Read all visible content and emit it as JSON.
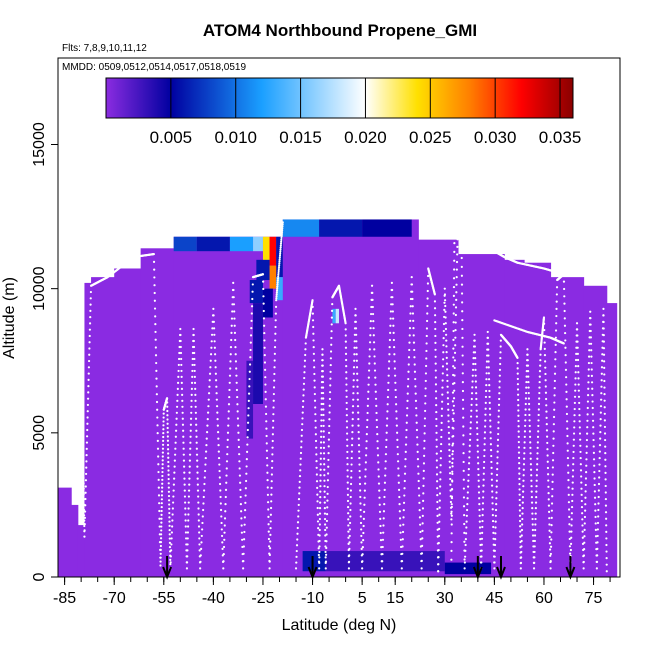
{
  "chart_data": {
    "type": "heatmap",
    "title": "ATOM4 Northbound Propene_GMI",
    "annotations": [
      "Flts: 7,8,9,10,11,12",
      "MMDD: 0509,0512,0514,0517,0518,0519"
    ],
    "xlabel": "Latitude (deg N)",
    "ylabel": "Altitude (m)",
    "xlim": [
      -87,
      83
    ],
    "ylim": [
      0,
      18000
    ],
    "x_ticks": [
      -85,
      -70,
      -55,
      -40,
      -25,
      -10,
      5,
      15,
      30,
      45,
      60,
      75
    ],
    "y_ticks": [
      0,
      5000,
      10000,
      15000
    ],
    "colorbar": {
      "range": [
        0,
        0.036
      ],
      "ticks": [
        0.005,
        0.01,
        0.015,
        0.02,
        0.025,
        0.03,
        0.035
      ],
      "tick_labels": [
        "0.005",
        "0.010",
        "0.015",
        "0.020",
        "0.025",
        "0.030",
        "0.035"
      ],
      "stops": [
        "#8b2ce0",
        "#0000a0",
        "#1a9fff",
        "#ffffff",
        "#ffe000",
        "#ff8000",
        "#ff0000",
        "#8a0000"
      ],
      "stop_values": [
        0,
        0.005,
        0.012,
        0.02,
        0.024,
        0.028,
        0.032,
        0.036
      ]
    },
    "background_color": "#8a2be2",
    "coverage_columns": [
      {
        "lat_from": -87,
        "lat_to": -83,
        "top": 3100
      },
      {
        "lat_from": -83,
        "lat_to": -81,
        "top": 2500
      },
      {
        "lat_from": -81,
        "lat_to": -79,
        "top": 1800
      },
      {
        "lat_from": -79,
        "lat_to": -77,
        "top": 10200
      },
      {
        "lat_from": -77,
        "lat_to": -70,
        "top": 10400
      },
      {
        "lat_from": -70,
        "lat_to": -62,
        "top": 10700
      },
      {
        "lat_from": -62,
        "lat_to": -52,
        "top": 11400
      },
      {
        "lat_from": -52,
        "lat_to": -19,
        "top": 11800
      },
      {
        "lat_from": -19,
        "lat_to": 22,
        "top": 12400
      },
      {
        "lat_from": 22,
        "lat_to": 34,
        "top": 11700
      },
      {
        "lat_from": 34,
        "lat_to": 48,
        "top": 11200
      },
      {
        "lat_from": 48,
        "lat_to": 54,
        "top": 11000
      },
      {
        "lat_from": 54,
        "lat_to": 62,
        "top": 10900
      },
      {
        "lat_from": 62,
        "lat_to": 72,
        "top": 10400
      },
      {
        "lat_from": 72,
        "lat_to": 79,
        "top": 10100
      },
      {
        "lat_from": 79,
        "lat_to": 82,
        "top": 9500
      }
    ],
    "high_value_cells": [
      {
        "lat_from": -52,
        "lat_to": -45,
        "alt_from": 11300,
        "alt_to": 11800,
        "value": 0.008
      },
      {
        "lat_from": -45,
        "lat_to": -35,
        "alt_from": 11300,
        "alt_to": 11800,
        "value": 0.006
      },
      {
        "lat_from": -35,
        "lat_to": -28,
        "alt_from": 11300,
        "alt_to": 11800,
        "value": 0.012
      },
      {
        "lat_from": -28,
        "lat_to": -25,
        "alt_from": 11300,
        "alt_to": 11800,
        "value": 0.016
      },
      {
        "lat_from": -25,
        "lat_to": -23,
        "alt_from": 10800,
        "alt_to": 11800,
        "value": 0.024
      },
      {
        "lat_from": -23,
        "lat_to": -21,
        "alt_from": 10800,
        "alt_to": 11800,
        "value": 0.032
      },
      {
        "lat_from": -21,
        "lat_to": -19,
        "alt_from": 10400,
        "alt_to": 11800,
        "value": 0.006
      },
      {
        "lat_from": -19,
        "lat_to": -8,
        "alt_from": 11800,
        "alt_to": 12400,
        "value": 0.011
      },
      {
        "lat_from": -8,
        "lat_to": 5,
        "alt_from": 11800,
        "alt_to": 12400,
        "value": 0.006
      },
      {
        "lat_from": 5,
        "lat_to": 20,
        "alt_from": 11800,
        "alt_to": 12400,
        "value": 0.005
      },
      {
        "lat_from": -27,
        "lat_to": -23,
        "alt_from": 10300,
        "alt_to": 11000,
        "value": 0.006
      },
      {
        "lat_from": -23,
        "lat_to": -21,
        "alt_from": 10000,
        "alt_to": 10800,
        "value": 0.028
      },
      {
        "lat_from": -21,
        "lat_to": -19,
        "alt_from": 9600,
        "alt_to": 10400,
        "value": 0.013
      },
      {
        "lat_from": -29,
        "lat_to": -25,
        "alt_from": 9500,
        "alt_to": 10300,
        "value": 0.006
      },
      {
        "lat_from": -25,
        "lat_to": -22,
        "alt_from": 9000,
        "alt_to": 10000,
        "value": 0.005
      },
      {
        "lat_from": -28,
        "lat_to": -25,
        "alt_from": 6000,
        "alt_to": 9500,
        "value": 0.004
      },
      {
        "lat_from": -30,
        "lat_to": -28,
        "alt_from": 4800,
        "alt_to": 7500,
        "value": 0.003
      },
      {
        "lat_from": -4,
        "lat_to": -3,
        "alt_from": 8800,
        "alt_to": 9300,
        "value": 0.013
      },
      {
        "lat_from": -3,
        "lat_to": -2,
        "alt_from": 8800,
        "alt_to": 9300,
        "value": 0.018
      },
      {
        "lat_from": -13,
        "lat_to": -6,
        "alt_from": 200,
        "alt_to": 900,
        "value": 0.006
      },
      {
        "lat_from": -6,
        "lat_to": 30,
        "alt_from": 200,
        "alt_to": 900,
        "value": 0.003
      },
      {
        "lat_from": 30,
        "lat_to": 44,
        "alt_from": 100,
        "alt_to": 500,
        "value": 0.005
      }
    ],
    "flight_track_points_per_segment": 40,
    "flight_tracks": [
      [
        [
          -87,
          4000
        ],
        [
          -86,
          9700
        ],
        [
          -85,
          10050
        ],
        [
          -81,
          10100
        ],
        [
          -80,
          8800
        ],
        [
          -79,
          1400
        ],
        [
          -77,
          10100
        ],
        [
          -72,
          10400
        ],
        [
          -64,
          11100
        ],
        [
          -58,
          11200
        ],
        [
          -56,
          400
        ],
        [
          -55,
          5800
        ],
        [
          -54,
          6200
        ],
        [
          -53,
          300
        ]
      ],
      [
        [
          -53,
          300
        ],
        [
          -50,
          8600
        ],
        [
          -48,
          300
        ],
        [
          -46,
          8600
        ],
        [
          -44,
          300
        ],
        [
          -40,
          9300
        ],
        [
          -37,
          300
        ],
        [
          -34,
          10200
        ],
        [
          -31,
          300
        ],
        [
          -28,
          10400
        ],
        [
          -25,
          10500
        ],
        [
          -23,
          300
        ],
        [
          -21,
          9600
        ],
        [
          -19,
          12300
        ]
      ],
      [
        [
          -15,
          300
        ],
        [
          -12,
          8300
        ],
        [
          -10,
          9600
        ],
        [
          -8,
          300
        ],
        [
          -7,
          7900
        ],
        [
          -6,
          300
        ],
        [
          -4,
          9700
        ],
        [
          -2,
          10100
        ],
        [
          0,
          8800
        ],
        [
          1,
          300
        ],
        [
          3,
          9300
        ],
        [
          5,
          300
        ],
        [
          8,
          10100
        ],
        [
          11,
          300
        ],
        [
          14,
          10200
        ],
        [
          17,
          300
        ],
        [
          20,
          10400
        ],
        [
          23,
          300
        ],
        [
          25,
          10700
        ],
        [
          27,
          9800
        ],
        [
          28,
          200
        ]
      ],
      [
        [
          28,
          200
        ],
        [
          30,
          10000
        ],
        [
          32,
          2000
        ],
        [
          34,
          12500
        ],
        [
          35,
          12600
        ],
        [
          36,
          300
        ],
        [
          39,
          8400
        ],
        [
          41,
          300
        ],
        [
          43,
          8500
        ],
        [
          45,
          300
        ],
        [
          47,
          8400
        ],
        [
          50,
          8000
        ],
        [
          52,
          7600
        ],
        [
          53,
          300
        ],
        [
          55,
          7900
        ],
        [
          57,
          300
        ],
        [
          59,
          7900
        ],
        [
          60,
          9000
        ],
        [
          62,
          300
        ],
        [
          64,
          10300
        ],
        [
          66,
          10500
        ],
        [
          68,
          300
        ],
        [
          70,
          8800
        ],
        [
          72,
          300
        ],
        [
          74,
          9200
        ],
        [
          76,
          300
        ],
        [
          78,
          9300
        ],
        [
          79,
          200
        ]
      ],
      [
        [
          32,
          600
        ],
        [
          33,
          12800
        ],
        [
          34,
          12900
        ]
      ],
      [
        [
          45,
          11300
        ],
        [
          48,
          11100
        ],
        [
          52,
          10900
        ],
        [
          60,
          10700
        ],
        [
          66,
          10500
        ]
      ],
      [
        [
          45,
          8900
        ],
        [
          55,
          8500
        ],
        [
          62,
          8300
        ],
        [
          66,
          8100
        ]
      ],
      [
        [
          63,
          10500
        ],
        [
          70,
          10600
        ],
        [
          74,
          10800
        ]
      ]
    ],
    "flight_markers_lat": [
      -54,
      -10,
      40,
      47,
      68
    ]
  }
}
